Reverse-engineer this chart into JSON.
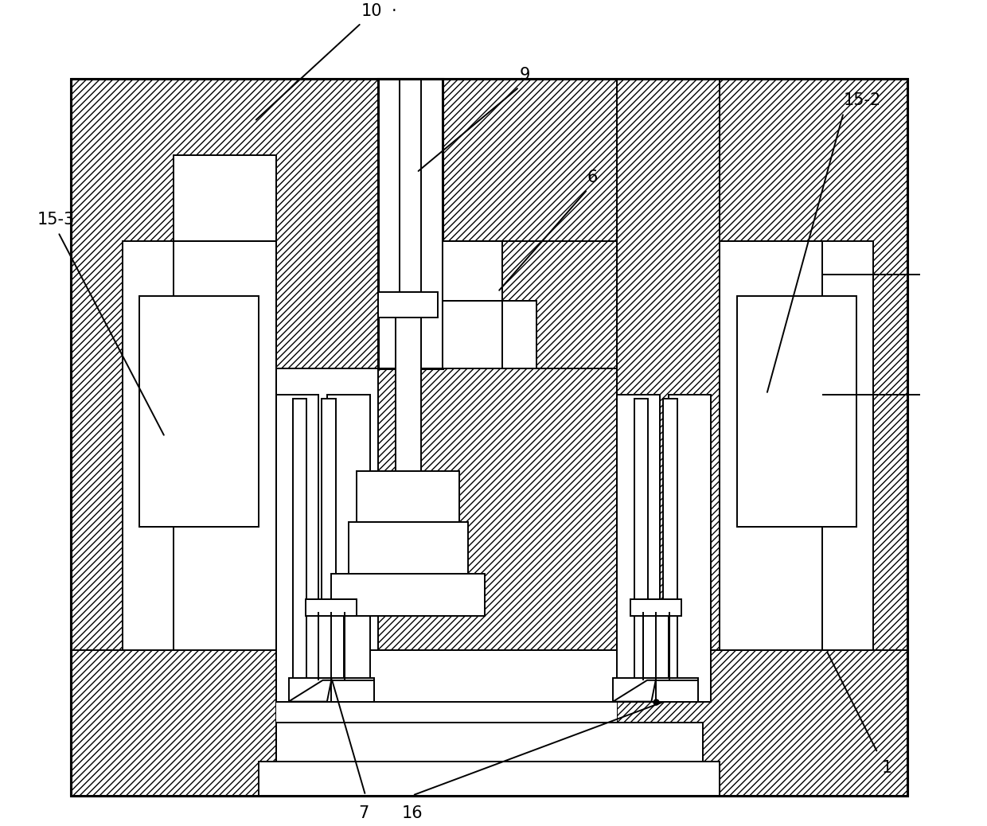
{
  "background_color": "#ffffff",
  "line_color": "#000000",
  "lw": 1.4,
  "tlw": 2.2,
  "label_fontsize": 15,
  "figsize": [
    12.4,
    10.38
  ],
  "dpi": 100
}
